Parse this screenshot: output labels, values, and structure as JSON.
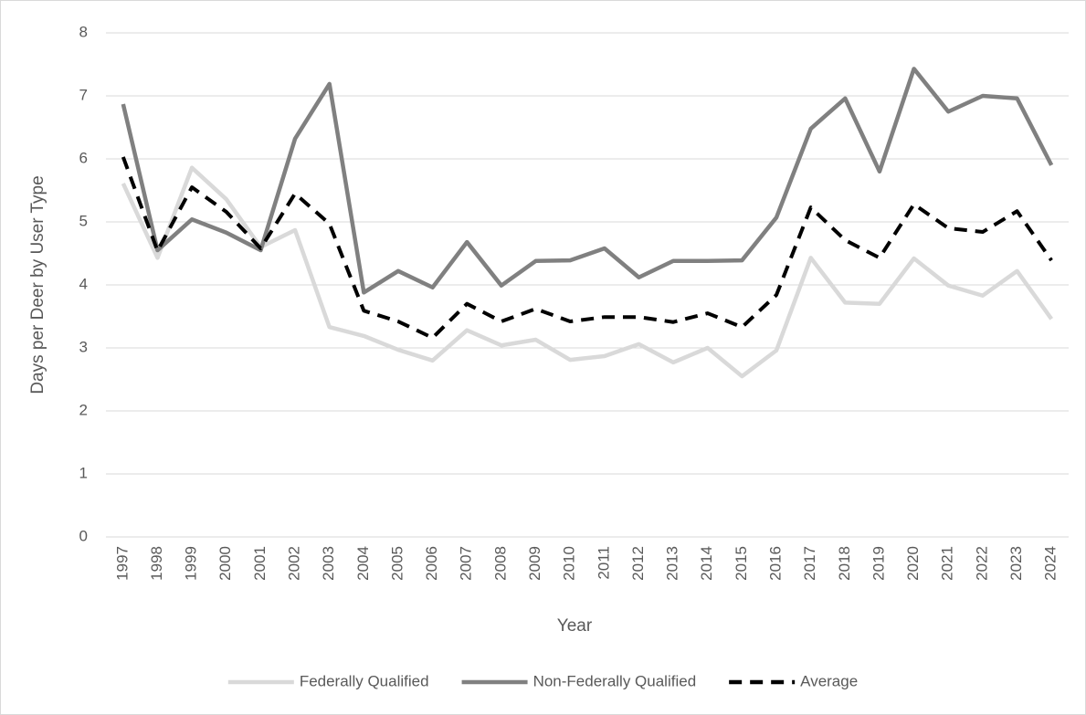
{
  "chart_data": {
    "type": "line",
    "y_label": "Days per Deer by User Type",
    "x_label": "Year",
    "categories": [
      "1997",
      "1998",
      "1999",
      "2000",
      "2001",
      "2002",
      "2003",
      "2004",
      "2005",
      "2006",
      "2007",
      "2008",
      "2009",
      "2010",
      "2011",
      "2012",
      "2013",
      "2014",
      "2015",
      "2016",
      "2017",
      "2018",
      "2019",
      "2020",
      "2021",
      "2022",
      "2023",
      "2024"
    ],
    "series": [
      {
        "name": "Federally Qualified",
        "color": "#d9d9d9",
        "line_style": "solid",
        "values": [
          5.61,
          4.43,
          5.86,
          5.36,
          4.6,
          4.87,
          3.33,
          3.19,
          2.97,
          2.8,
          3.28,
          3.04,
          3.13,
          2.81,
          2.87,
          3.06,
          2.77,
          3.0,
          2.55,
          2.96,
          4.43,
          3.72,
          3.7,
          4.42,
          3.99,
          3.83,
          4.22,
          3.46
        ]
      },
      {
        "name": "Non-Federally Qualified",
        "color": "#808080",
        "line_style": "solid",
        "values": [
          6.87,
          4.55,
          5.04,
          4.83,
          4.55,
          6.32,
          7.19,
          3.88,
          4.22,
          3.96,
          4.68,
          3.99,
          4.38,
          4.39,
          4.58,
          4.12,
          4.38,
          4.38,
          4.39,
          5.07,
          6.48,
          6.96,
          5.8,
          7.43,
          6.75,
          7.0,
          6.96,
          5.9
        ]
      },
      {
        "name": "Average",
        "color": "#000000",
        "line_style": "dashed",
        "values": [
          6.03,
          4.54,
          5.55,
          5.16,
          4.58,
          5.45,
          4.97,
          3.59,
          3.42,
          3.16,
          3.7,
          3.42,
          3.62,
          3.42,
          3.49,
          3.49,
          3.41,
          3.55,
          3.33,
          3.84,
          5.23,
          4.71,
          4.43,
          5.28,
          4.9,
          4.84,
          5.17,
          4.39
        ]
      }
    ],
    "ylim": [
      0,
      8
    ],
    "yticks": [
      0,
      1,
      2,
      3,
      4,
      5,
      6,
      7,
      8
    ],
    "grid": true,
    "legend": "bottom"
  }
}
